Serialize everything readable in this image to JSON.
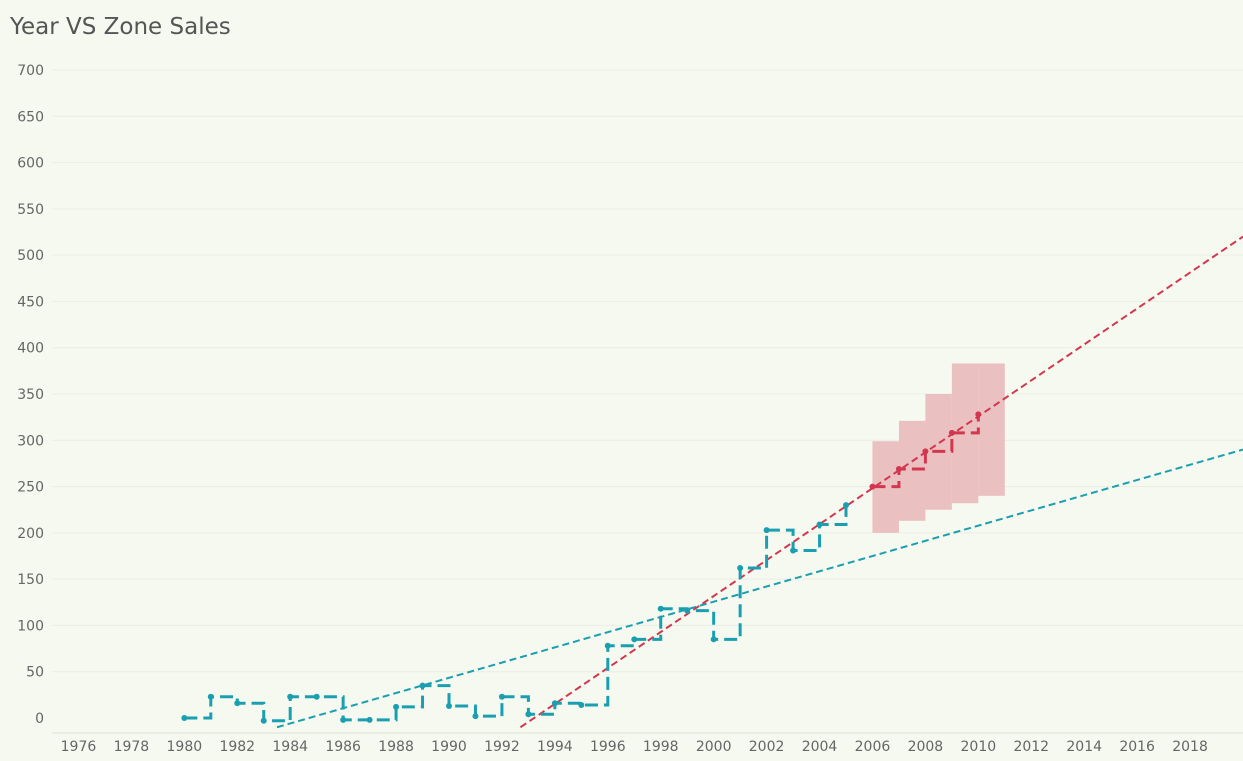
{
  "chart_data": {
    "type": "line",
    "title": "Year VS Zone Sales",
    "xlabel": "",
    "ylabel": "",
    "xlim": [
      1975,
      2020
    ],
    "ylim": [
      0,
      700
    ],
    "x_ticks": [
      1976,
      1978,
      1980,
      1982,
      1984,
      1986,
      1988,
      1990,
      1992,
      1994,
      1996,
      1998,
      2000,
      2002,
      2004,
      2006,
      2008,
      2010,
      2012,
      2014,
      2016,
      2018
    ],
    "y_ticks": [
      0,
      50,
      100,
      150,
      200,
      250,
      300,
      350,
      400,
      450,
      500,
      550,
      600,
      650,
      700
    ],
    "grid": true,
    "colors": {
      "actual": "#1a9fb0",
      "forecast": "#d2374f",
      "band": "#e8b7b7"
    },
    "series": [
      {
        "role": "actual",
        "x": [
          1980,
          1981,
          1982,
          1983,
          1984,
          1985,
          1986,
          1987,
          1988,
          1989,
          1990,
          1991,
          1992,
          1993,
          1994,
          1995,
          1996,
          1997,
          1998,
          1999,
          2000,
          2001,
          2002,
          2003,
          2004,
          2005
        ],
        "y": [
          0,
          23,
          16,
          -3,
          23,
          23,
          -2,
          -2,
          12,
          35,
          13,
          2,
          23,
          4,
          16,
          14,
          78,
          85,
          118,
          116,
          85,
          162,
          203,
          181,
          209,
          230
        ]
      },
      {
        "role": "forecast",
        "x": [
          2006,
          2007,
          2008,
          2009,
          2010
        ],
        "y": [
          250,
          269,
          288,
          308,
          328
        ],
        "lower": [
          200,
          213,
          225,
          232,
          240
        ],
        "upper": [
          299,
          321,
          350,
          383,
          383
        ]
      }
    ],
    "trend_lines": [
      {
        "role": "actual",
        "x": [
          1983.5,
          2020
        ],
        "y": [
          -10,
          290
        ]
      },
      {
        "role": "forecast",
        "x": [
          1992.7,
          2020
        ],
        "y": [
          -10,
          520
        ]
      }
    ]
  }
}
